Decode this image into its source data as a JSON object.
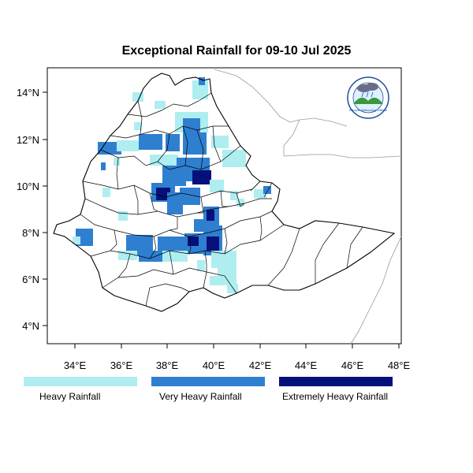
{
  "title": "Exceptional Rainfall for 09-10 Jul 2025",
  "axes": {
    "lon_ticks": [
      "34°E",
      "36°E",
      "38°E",
      "40°E",
      "42°E",
      "44°E",
      "46°E",
      "48°E"
    ],
    "lat_ticks": [
      "14°N",
      "12°N",
      "10°N",
      "8°N",
      "6°N",
      "4°N"
    ]
  },
  "legend": [
    {
      "label": "Heavy Rainfall",
      "color": "#aeeef0"
    },
    {
      "label": "Very Heavy Rainfall",
      "color": "#2f7fd0"
    },
    {
      "label": "Extremely Heavy Rainfall",
      "color": "#06107a"
    }
  ],
  "logo": {
    "name": "ethiopian-meteorology-institute-logo",
    "text_en": "Ethiopian Meteorology Institute"
  },
  "colors": {
    "border": "#000000",
    "neighbor_border": "#999999"
  }
}
